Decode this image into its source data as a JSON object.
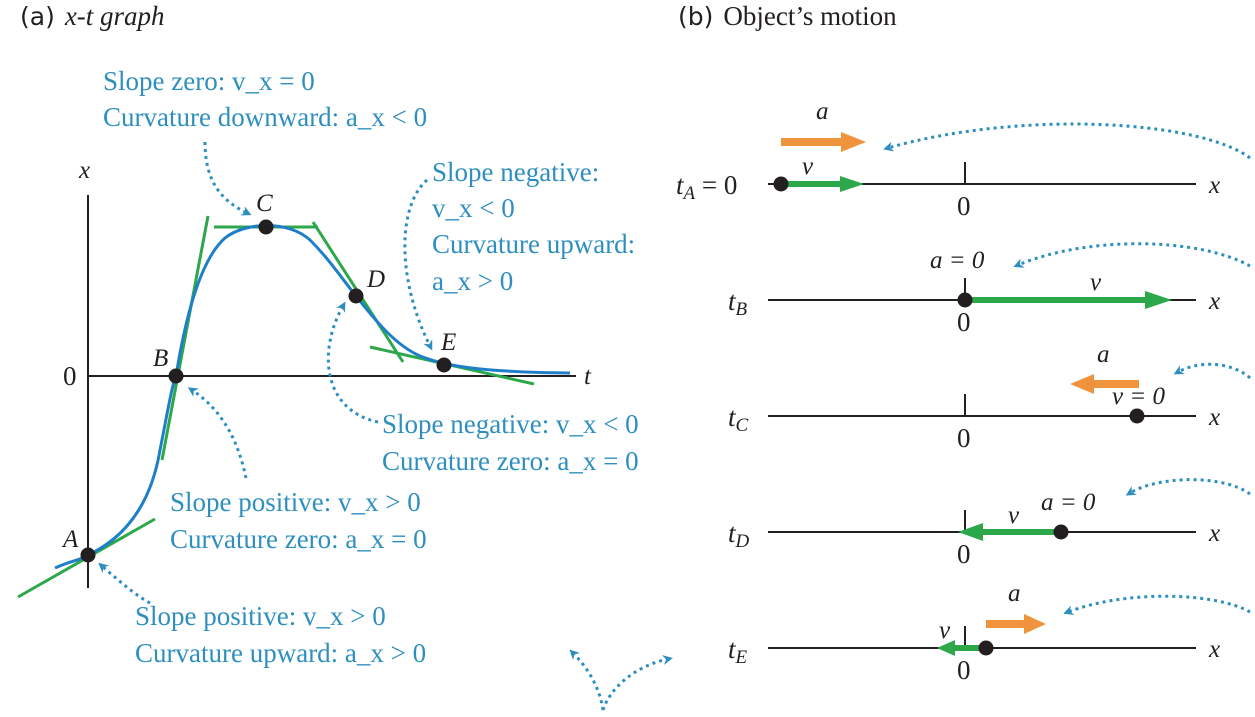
{
  "colors": {
    "text": "#231f20",
    "caption": "#2e8fbf",
    "curve": "#1e7fc8",
    "tangent": "#2ca84a",
    "velocity_arrow": "#2ca84a",
    "acceleration_arrow": "#f0933d",
    "dot": "#231f20",
    "pointer": "#2e8fbf"
  },
  "panel_a": {
    "tag": "(a)",
    "title": "x-t graph",
    "x_axis": "x",
    "t_axis": "t",
    "zero": "0",
    "points": [
      "A",
      "B",
      "C",
      "D",
      "E"
    ],
    "notes": {
      "A": [
        "Slope positive: v_x > 0",
        "Curvature upward: a_x > 0"
      ],
      "B": [
        "Slope positive: v_x > 0",
        "Curvature zero: a_x = 0"
      ],
      "C": [
        "Slope zero: v_x = 0",
        "Curvature downward: a_x < 0"
      ],
      "D": [
        "Slope negative: v_x < 0",
        "Curvature zero: a_x = 0"
      ],
      "E": [
        "Slope negative:",
        "v_x < 0",
        "Curvature upward:",
        "a_x > 0"
      ]
    }
  },
  "panel_b": {
    "tag": "(b)",
    "title": "Object’s motion",
    "axis": "x",
    "zero": "0",
    "rows": [
      {
        "time": "t_A = 0",
        "arrow_a": "a",
        "arrow_v": "v"
      },
      {
        "time": "t_B",
        "note": "a = 0",
        "arrow_v": "v"
      },
      {
        "time": "t_C",
        "arrow_a": "a",
        "note": "v = 0"
      },
      {
        "time": "t_D",
        "arrow_v": "v",
        "note": "a = 0"
      },
      {
        "time": "t_E",
        "arrow_a": "a",
        "arrow_v": "v"
      }
    ]
  }
}
